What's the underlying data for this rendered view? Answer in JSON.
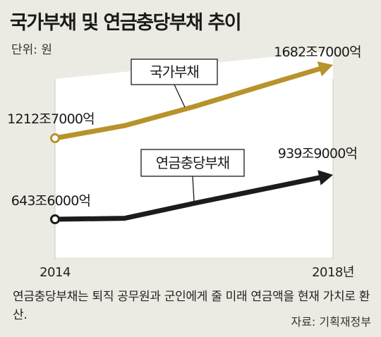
{
  "title": "국가부채 및 연금충당부채 추이",
  "unit_label": "단위: 원",
  "footnote": "연금충당부채는 퇴직 공무원과 군인에게 줄 미래 연금액을 현재 가치로 환산.",
  "source": "자료: 기획재정부",
  "colors": {
    "background": "#ecebe3",
    "plot_area": "#ffffff",
    "national_debt": "#b8922a",
    "pension_liability": "#1c1c1c"
  },
  "chart_data": {
    "type": "line",
    "title": "국가부채 및 연금충당부채 추이",
    "xlabel": "",
    "ylabel": "",
    "x_tick_labels": [
      "2014",
      "2018년"
    ],
    "x": [
      2014,
      2015,
      2016,
      2017,
      2018
    ],
    "ylim": [
      0,
      2000
    ],
    "y_unit": "조원",
    "grid": false,
    "legend": "inline-callouts",
    "series": [
      {
        "name": "국가부채",
        "color": "#b8922a",
        "values": [
          1212.7,
          1293,
          1415,
          1550,
          1682.7
        ],
        "start_label": "1212조7000억",
        "end_label": "1682조7000억"
      },
      {
        "name": "연금충당부채",
        "color": "#1c1c1c",
        "values": [
          643.6,
          650,
          750,
          845,
          939.9
        ],
        "start_label": "643조6000억",
        "end_label": "939조9000억"
      }
    ]
  }
}
